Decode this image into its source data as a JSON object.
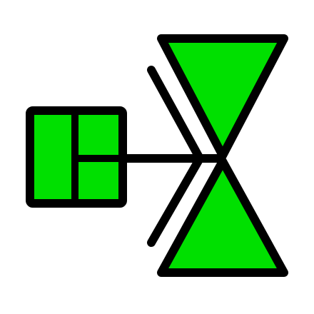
{
  "symbol": {
    "name": "valve-with-actuator",
    "fill_color": "#00e000",
    "stroke_color": "#000000"
  }
}
